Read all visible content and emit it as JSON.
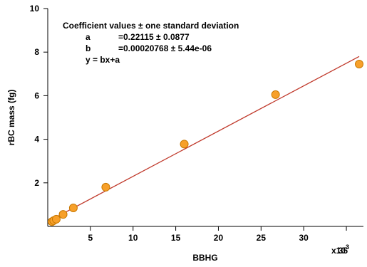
{
  "chart_data": {
    "type": "scatter",
    "title": "",
    "xlabel": "BBHG",
    "ylabel": "rBC mass (fg)",
    "x_scale_label": "x10",
    "x_scale_exponent": "3",
    "xlim": [
      0,
      37000
    ],
    "ylim": [
      0,
      10
    ],
    "x_ticks": [
      {
        "value": 5000,
        "label": "5"
      },
      {
        "value": 10000,
        "label": "10"
      },
      {
        "value": 15000,
        "label": "15"
      },
      {
        "value": 20000,
        "label": "20"
      },
      {
        "value": 25000,
        "label": "25"
      },
      {
        "value": 30000,
        "label": "30"
      },
      {
        "value": 35000,
        "label": "35"
      }
    ],
    "y_ticks": [
      {
        "value": 2,
        "label": "2"
      },
      {
        "value": 4,
        "label": "4"
      },
      {
        "value": 6,
        "label": "6"
      },
      {
        "value": 8,
        "label": "8"
      },
      {
        "value": 10,
        "label": "10"
      }
    ],
    "grid": false,
    "points": [
      {
        "x": 500,
        "y": 0.22
      },
      {
        "x": 700,
        "y": 0.27
      },
      {
        "x": 1000,
        "y": 0.33
      },
      {
        "x": 1800,
        "y": 0.55
      },
      {
        "x": 3000,
        "y": 0.85
      },
      {
        "x": 6800,
        "y": 1.8
      },
      {
        "x": 16000,
        "y": 3.78
      },
      {
        "x": 26700,
        "y": 6.05
      },
      {
        "x": 36500,
        "y": 7.45
      }
    ],
    "fit": {
      "a": 0.22115,
      "b": 0.00020768,
      "x_start": 300,
      "x_end": 36500
    },
    "annotation": {
      "heading": "Coefficient values ± one standard deviation",
      "line_a_name": "a",
      "line_a_value": "=0.22115 ± 0.0877",
      "line_b_name": "b",
      "line_b_value": "=0.00020768 ± 5.44e-06",
      "equation": "y = bx+a"
    },
    "colors": {
      "points": "#f7a02a",
      "point_outline": "#c87800",
      "fit_line": "#c0392b"
    }
  }
}
